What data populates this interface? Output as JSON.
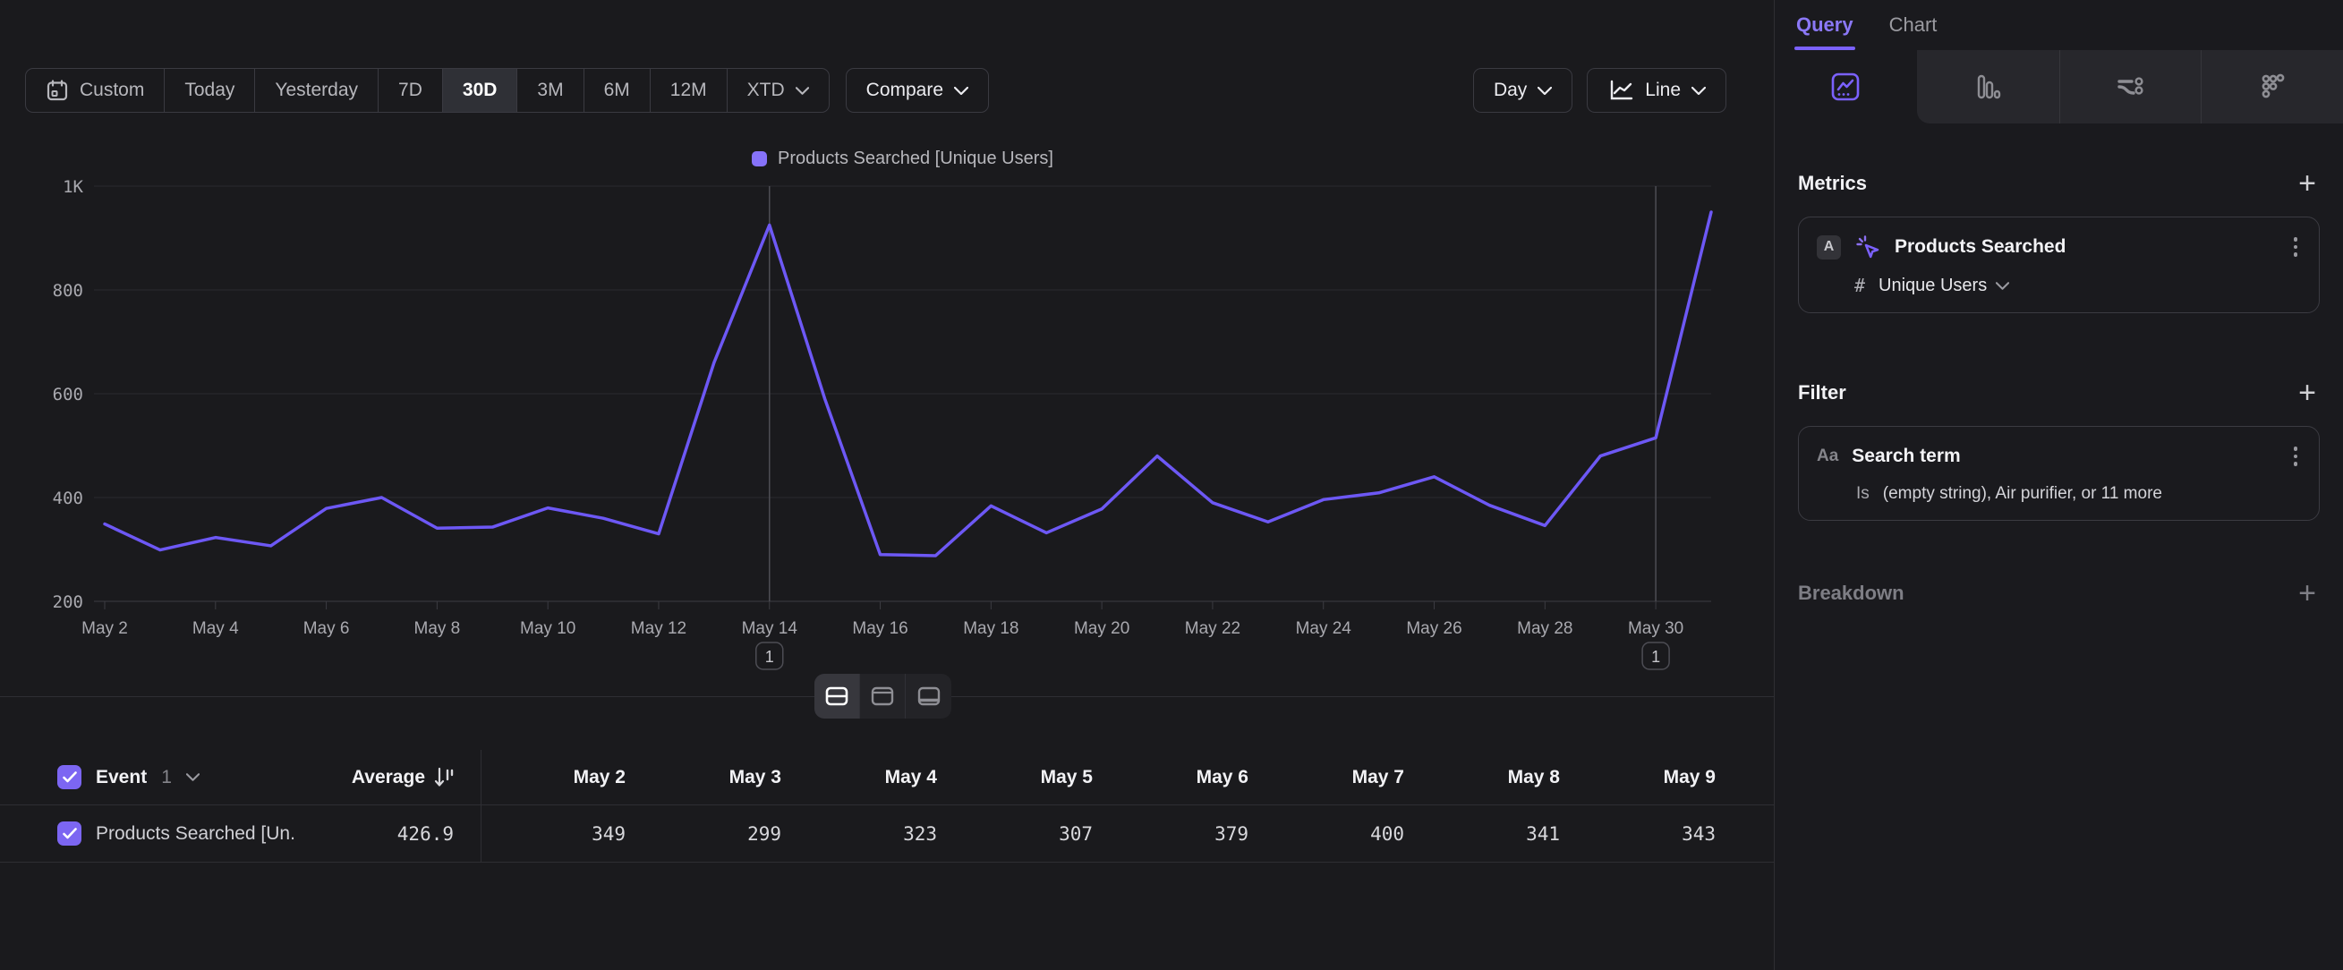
{
  "toolbar": {
    "date_ranges": [
      "Custom",
      "Today",
      "Yesterday",
      "7D",
      "30D",
      "3M",
      "6M",
      "12M",
      "XTD"
    ],
    "selected_range": "30D",
    "compare_label": "Compare",
    "granularity_label": "Day",
    "chart_type_label": "Line"
  },
  "chart_data": {
    "type": "line",
    "series": [
      {
        "name": "Products Searched [Unique Users]",
        "color": "#6d58f5"
      }
    ],
    "legend_position": "top-center",
    "grid": "horizontal",
    "x": [
      "May 2",
      "May 3",
      "May 4",
      "May 5",
      "May 6",
      "May 7",
      "May 8",
      "May 9",
      "May 10",
      "May 11",
      "May 12",
      "May 13",
      "May 14",
      "May 15",
      "May 16",
      "May 17",
      "May 18",
      "May 19",
      "May 20",
      "May 21",
      "May 22",
      "May 23",
      "May 24",
      "May 25",
      "May 26",
      "May 27",
      "May 28",
      "May 29",
      "May 30",
      "May 31"
    ],
    "values": [
      349,
      299,
      323,
      307,
      379,
      400,
      341,
      343,
      380,
      360,
      330,
      660,
      925,
      590,
      290,
      288,
      384,
      332,
      378,
      480,
      390,
      353,
      396,
      409,
      440,
      385,
      346,
      480,
      515,
      950
    ],
    "x_tick_labels": [
      "May 2",
      "May 4",
      "May 6",
      "May 8",
      "May 10",
      "May 12",
      "May 14",
      "May 16",
      "May 18",
      "May 20",
      "May 22",
      "May 24",
      "May 26",
      "May 28",
      "May 30"
    ],
    "y_ticks": [
      {
        "label": "1K",
        "value": 1000
      },
      {
        "label": "800",
        "value": 800
      },
      {
        "label": "600",
        "value": 600
      },
      {
        "label": "400",
        "value": 400
      },
      {
        "label": "200",
        "value": 200
      }
    ],
    "ylim": [
      200,
      1000
    ],
    "annotations": [
      {
        "x": "May 14",
        "label": "1"
      },
      {
        "x": "May 30",
        "label": "1"
      }
    ],
    "legend_swatch_color": "#8672fa"
  },
  "layout_toggle": {
    "options": [
      "split-horizontal",
      "panel-top",
      "panel-bottom"
    ],
    "active": "split-horizontal"
  },
  "table": {
    "event_header": "Event",
    "event_count": "1",
    "average_header": "Average",
    "date_columns": [
      "May 2",
      "May 3",
      "May 4",
      "May 5",
      "May 6",
      "May 7",
      "May 8",
      "May 9"
    ],
    "rows": [
      {
        "name": "Products Searched [Un...",
        "average": "426.9",
        "values": [
          "349",
          "299",
          "323",
          "307",
          "379",
          "400",
          "341",
          "343"
        ],
        "checked": true
      }
    ]
  },
  "sidebar": {
    "tabs": [
      {
        "label": "Query",
        "active": true
      },
      {
        "label": "Chart",
        "active": false
      }
    ],
    "chart_type_tabs": [
      "insights",
      "bar",
      "flows",
      "retention"
    ],
    "active_chart_type_tab": "insights",
    "metrics": {
      "title": "Metrics",
      "add_label": "+",
      "items": [
        {
          "badge": "A",
          "name": "Products Searched",
          "aggregation_symbol": "#",
          "aggregation": "Unique Users"
        }
      ]
    },
    "filter": {
      "title": "Filter",
      "add_label": "+",
      "items": [
        {
          "property_type": "Aa",
          "property": "Search term",
          "operator": "Is",
          "value": "(empty string), Air purifier, or 11 more"
        }
      ]
    },
    "breakdown": {
      "title": "Breakdown",
      "add_label": "+"
    }
  },
  "colors": {
    "accent": "#7b61ff",
    "line": "#6d58f5",
    "checkbox": "#7c66f2",
    "selected_range_bg": "#2f3036"
  }
}
